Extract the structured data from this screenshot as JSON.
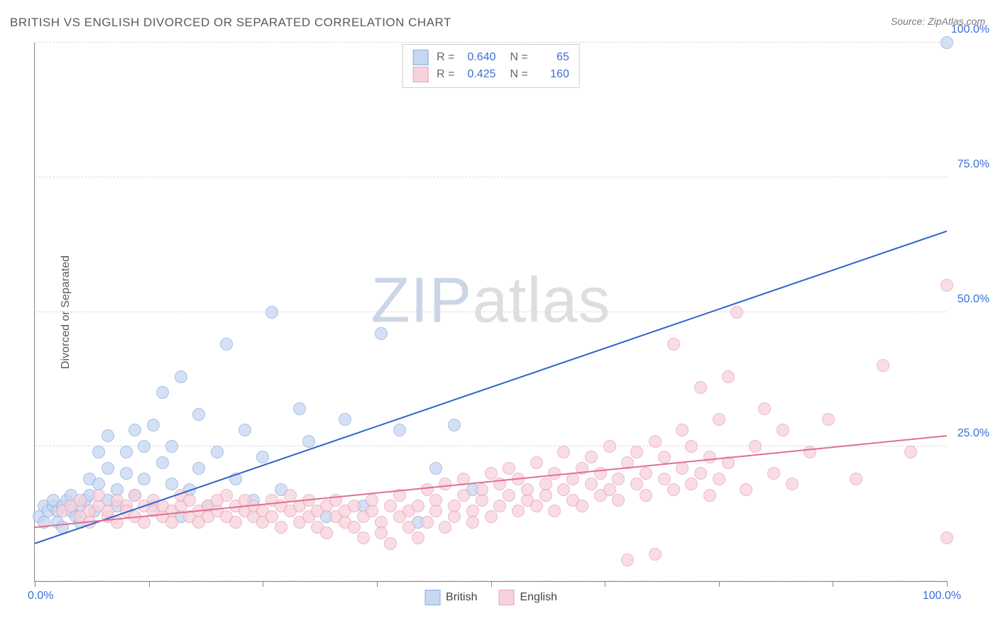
{
  "title": "BRITISH VS ENGLISH DIVORCED OR SEPARATED CORRELATION CHART",
  "source": "Source: ZipAtlas.com",
  "watermark_zip": "ZIP",
  "watermark_atlas": "atlas",
  "ylabel": "Divorced or Separated",
  "chart": {
    "type": "scatter",
    "background": "#ffffff",
    "grid_color": "#d9d9d9",
    "axis_line_color": "#888888",
    "xlim": [
      0,
      100
    ],
    "ylim": [
      0,
      100
    ],
    "y_grid_positions": [
      0,
      25,
      50,
      75,
      100
    ],
    "x_tick_positions": [
      0,
      12.5,
      25,
      37.5,
      50,
      62.5,
      75,
      87.5,
      100
    ],
    "y_tick_labels": [
      "25.0%",
      "50.0%",
      "75.0%",
      "100.0%"
    ],
    "y_tick_label_positions": [
      25,
      50,
      75,
      100
    ],
    "x_tick_left_label": "0.0%",
    "x_tick_right_label": "100.0%",
    "tick_label_color": "#3b6fd4",
    "marker_radius": 9,
    "marker_stroke_width": 1.5,
    "line_width": 2,
    "series": [
      {
        "name": "British",
        "fill": "#c6d8f1",
        "stroke": "#8aacdf",
        "line_color": "#2f63c8",
        "R": "0.640",
        "N": "65",
        "trend": {
          "x1": 0,
          "y1": 7,
          "x2": 100,
          "y2": 65
        },
        "points": [
          [
            0.5,
            12
          ],
          [
            1,
            14
          ],
          [
            1,
            11
          ],
          [
            1.5,
            13
          ],
          [
            2,
            14
          ],
          [
            2,
            15
          ],
          [
            2.5,
            13
          ],
          [
            2.5,
            11
          ],
          [
            3,
            14
          ],
          [
            3,
            10
          ],
          [
            3.5,
            15
          ],
          [
            4,
            13
          ],
          [
            4,
            16
          ],
          [
            4.5,
            12
          ],
          [
            5,
            14
          ],
          [
            5,
            11
          ],
          [
            5.5,
            15
          ],
          [
            6,
            16
          ],
          [
            6,
            19
          ],
          [
            6.5,
            13
          ],
          [
            7,
            18
          ],
          [
            7,
            24
          ],
          [
            8,
            15
          ],
          [
            8,
            21
          ],
          [
            8,
            27
          ],
          [
            9,
            14
          ],
          [
            9,
            17
          ],
          [
            10,
            24
          ],
          [
            10,
            20
          ],
          [
            11,
            16
          ],
          [
            11,
            28
          ],
          [
            12,
            25
          ],
          [
            12,
            19
          ],
          [
            13,
            14
          ],
          [
            13,
            29
          ],
          [
            14,
            35
          ],
          [
            14,
            22
          ],
          [
            15,
            18
          ],
          [
            15,
            25
          ],
          [
            16,
            12
          ],
          [
            16,
            38
          ],
          [
            17,
            17
          ],
          [
            18,
            31
          ],
          [
            18,
            21
          ],
          [
            19,
            14
          ],
          [
            20,
            24
          ],
          [
            21,
            44
          ],
          [
            22,
            19
          ],
          [
            23,
            28
          ],
          [
            24,
            15
          ],
          [
            25,
            23
          ],
          [
            26,
            50
          ],
          [
            27,
            17
          ],
          [
            29,
            32
          ],
          [
            30,
            26
          ],
          [
            32,
            12
          ],
          [
            34,
            30
          ],
          [
            36,
            14
          ],
          [
            38,
            46
          ],
          [
            40,
            28
          ],
          [
            42,
            11
          ],
          [
            44,
            21
          ],
          [
            46,
            29
          ],
          [
            48,
            17
          ],
          [
            100,
            100
          ]
        ]
      },
      {
        "name": "English",
        "fill": "#f7d2dc",
        "stroke": "#e8a2b5",
        "line_color": "#e16f8e",
        "R": "0.425",
        "N": "160",
        "trend": {
          "x1": 0,
          "y1": 10,
          "x2": 100,
          "y2": 27
        },
        "points": [
          [
            3,
            13
          ],
          [
            4,
            14
          ],
          [
            5,
            12
          ],
          [
            5,
            15
          ],
          [
            6,
            13
          ],
          [
            6,
            11
          ],
          [
            7,
            14
          ],
          [
            7,
            16
          ],
          [
            8,
            12
          ],
          [
            8,
            13
          ],
          [
            9,
            15
          ],
          [
            9,
            11
          ],
          [
            10,
            14
          ],
          [
            10,
            13
          ],
          [
            11,
            12
          ],
          [
            11,
            16
          ],
          [
            12,
            14
          ],
          [
            12,
            11
          ],
          [
            13,
            15
          ],
          [
            13,
            13
          ],
          [
            14,
            12
          ],
          [
            14,
            14
          ],
          [
            15,
            13
          ],
          [
            15,
            11
          ],
          [
            16,
            14
          ],
          [
            16,
            16
          ],
          [
            17,
            12
          ],
          [
            17,
            15
          ],
          [
            18,
            13
          ],
          [
            18,
            11
          ],
          [
            19,
            14
          ],
          [
            19,
            12
          ],
          [
            20,
            13
          ],
          [
            20,
            15
          ],
          [
            21,
            16
          ],
          [
            21,
            12
          ],
          [
            22,
            14
          ],
          [
            22,
            11
          ],
          [
            23,
            13
          ],
          [
            23,
            15
          ],
          [
            24,
            12
          ],
          [
            24,
            14
          ],
          [
            25,
            13
          ],
          [
            25,
            11
          ],
          [
            26,
            15
          ],
          [
            26,
            12
          ],
          [
            27,
            14
          ],
          [
            27,
            10
          ],
          [
            28,
            13
          ],
          [
            28,
            16
          ],
          [
            29,
            11
          ],
          [
            29,
            14
          ],
          [
            30,
            12
          ],
          [
            30,
            15
          ],
          [
            31,
            13
          ],
          [
            31,
            10
          ],
          [
            32,
            14
          ],
          [
            32,
            9
          ],
          [
            33,
            12
          ],
          [
            33,
            15
          ],
          [
            34,
            11
          ],
          [
            34,
            13
          ],
          [
            35,
            10
          ],
          [
            35,
            14
          ],
          [
            36,
            12
          ],
          [
            36,
            8
          ],
          [
            37,
            13
          ],
          [
            37,
            15
          ],
          [
            38,
            11
          ],
          [
            38,
            9
          ],
          [
            39,
            14
          ],
          [
            39,
            7
          ],
          [
            40,
            12
          ],
          [
            40,
            16
          ],
          [
            41,
            10
          ],
          [
            41,
            13
          ],
          [
            42,
            8
          ],
          [
            42,
            14
          ],
          [
            43,
            17
          ],
          [
            43,
            11
          ],
          [
            44,
            13
          ],
          [
            44,
            15
          ],
          [
            45,
            10
          ],
          [
            45,
            18
          ],
          [
            46,
            12
          ],
          [
            46,
            14
          ],
          [
            47,
            16
          ],
          [
            47,
            19
          ],
          [
            48,
            13
          ],
          [
            48,
            11
          ],
          [
            49,
            15
          ],
          [
            49,
            17
          ],
          [
            50,
            20
          ],
          [
            50,
            12
          ],
          [
            51,
            14
          ],
          [
            51,
            18
          ],
          [
            52,
            16
          ],
          [
            52,
            21
          ],
          [
            53,
            13
          ],
          [
            53,
            19
          ],
          [
            54,
            15
          ],
          [
            54,
            17
          ],
          [
            55,
            22
          ],
          [
            55,
            14
          ],
          [
            56,
            18
          ],
          [
            56,
            16
          ],
          [
            57,
            20
          ],
          [
            57,
            13
          ],
          [
            58,
            24
          ],
          [
            58,
            17
          ],
          [
            59,
            15
          ],
          [
            59,
            19
          ],
          [
            60,
            21
          ],
          [
            60,
            14
          ],
          [
            61,
            18
          ],
          [
            61,
            23
          ],
          [
            62,
            16
          ],
          [
            62,
            20
          ],
          [
            63,
            25
          ],
          [
            63,
            17
          ],
          [
            64,
            19
          ],
          [
            64,
            15
          ],
          [
            65,
            22
          ],
          [
            65,
            4
          ],
          [
            66,
            18
          ],
          [
            66,
            24
          ],
          [
            67,
            16
          ],
          [
            67,
            20
          ],
          [
            68,
            26
          ],
          [
            68,
            5
          ],
          [
            69,
            19
          ],
          [
            69,
            23
          ],
          [
            70,
            17
          ],
          [
            70,
            44
          ],
          [
            71,
            21
          ],
          [
            71,
            28
          ],
          [
            72,
            18
          ],
          [
            72,
            25
          ],
          [
            73,
            36
          ],
          [
            73,
            20
          ],
          [
            74,
            23
          ],
          [
            74,
            16
          ],
          [
            75,
            30
          ],
          [
            75,
            19
          ],
          [
            76,
            38
          ],
          [
            76,
            22
          ],
          [
            77,
            50
          ],
          [
            78,
            17
          ],
          [
            79,
            25
          ],
          [
            80,
            32
          ],
          [
            81,
            20
          ],
          [
            82,
            28
          ],
          [
            83,
            18
          ],
          [
            85,
            24
          ],
          [
            87,
            30
          ],
          [
            90,
            19
          ],
          [
            93,
            40
          ],
          [
            96,
            24
          ],
          [
            100,
            55
          ],
          [
            100,
            8
          ]
        ]
      }
    ]
  },
  "legend_bottom": [
    {
      "label": "British",
      "fill": "#c6d8f1",
      "stroke": "#8aacdf"
    },
    {
      "label": "English",
      "fill": "#f7d2dc",
      "stroke": "#e8a2b5"
    }
  ]
}
